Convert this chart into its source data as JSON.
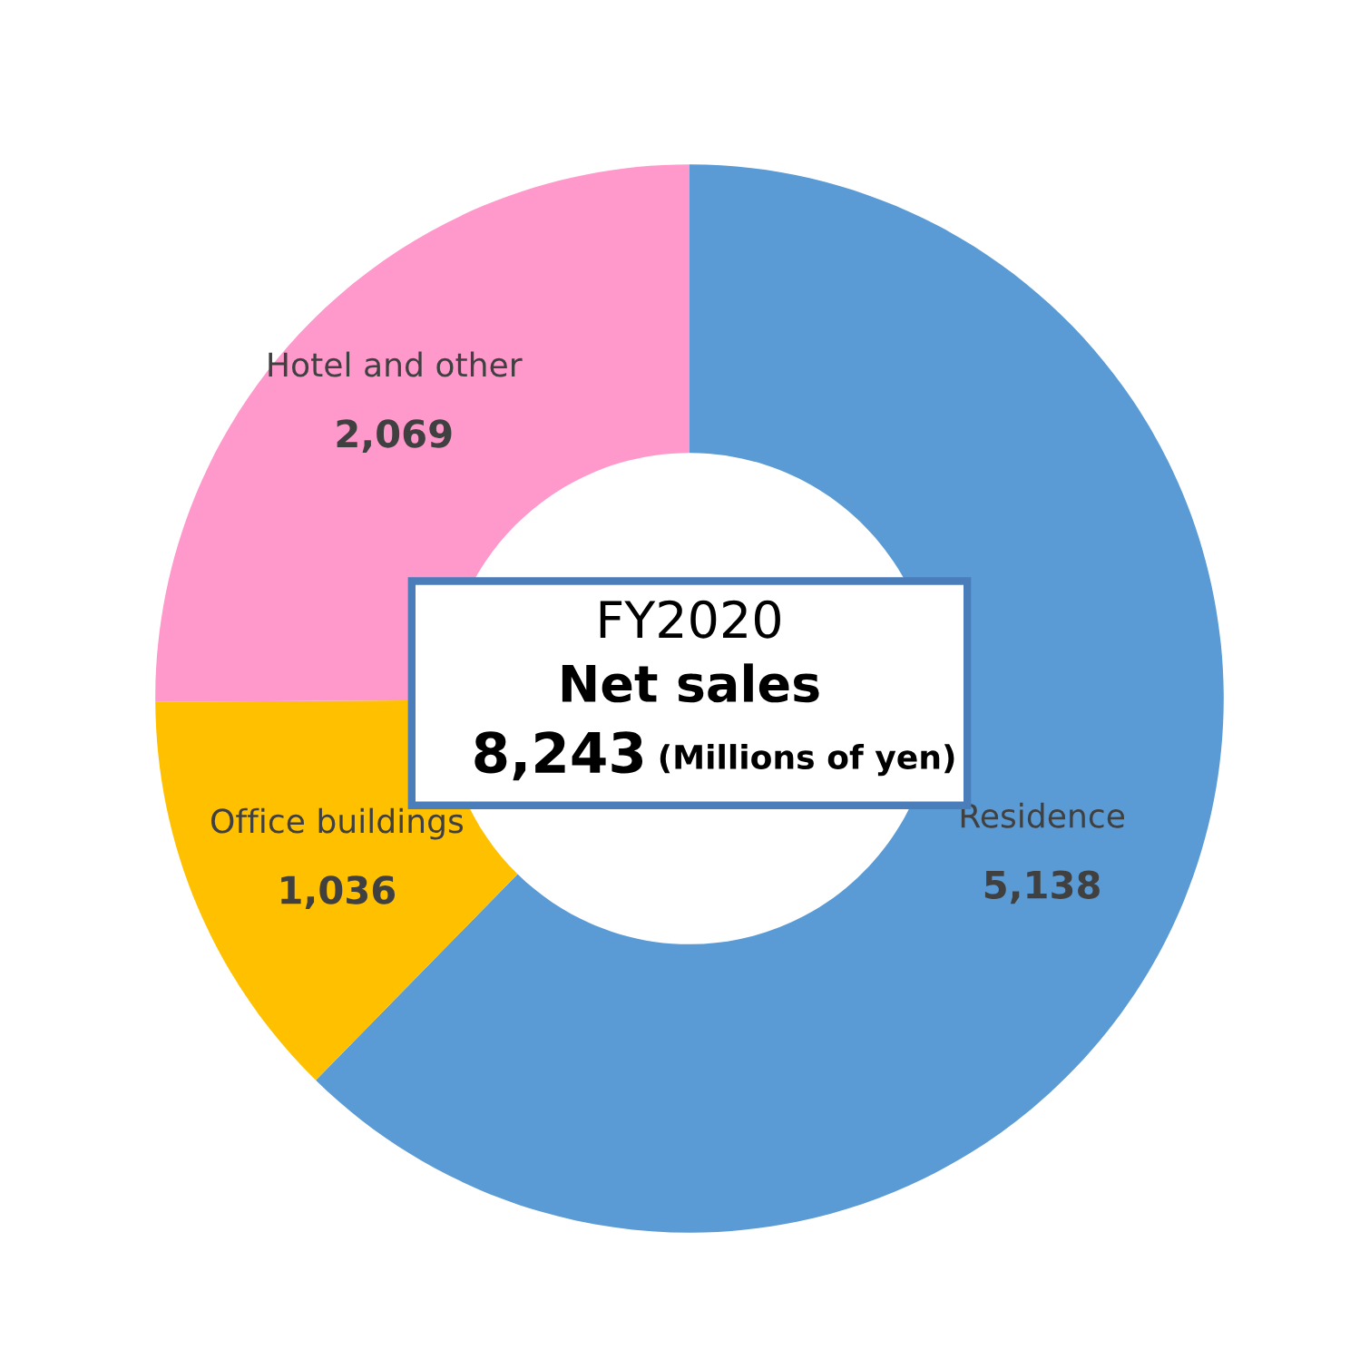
{
  "chart_data": {
    "type": "donut",
    "categories": [
      "Residence",
      "Office buildings",
      "Hotel and other"
    ],
    "values": [
      5138,
      1036,
      2069
    ],
    "colors": [
      "#5b9bd5",
      "#ffc000",
      "#ff99cc"
    ],
    "value_labels": [
      "5,138",
      "1,036",
      "2,069"
    ],
    "legend": false,
    "annotations": [
      "FY2020",
      "Net sales",
      "8,243",
      "(Millions of yen)"
    ]
  }
}
